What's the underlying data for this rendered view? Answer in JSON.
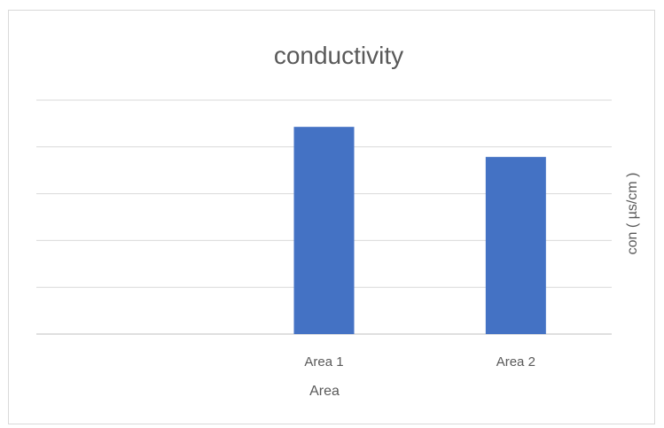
{
  "chart_data": {
    "type": "bar",
    "title": "conductivity",
    "categories": [
      "",
      "Area 1",
      "Area 2"
    ],
    "series": [
      {
        "values": [
          null,
          6.2,
          5.3
        ]
      }
    ],
    "xlabel": "Area",
    "ylabel": "con ( µs/cm )",
    "ylim": [
      0,
      7
    ],
    "grid": true,
    "legend": "none",
    "bar_color": "#4472C4"
  }
}
